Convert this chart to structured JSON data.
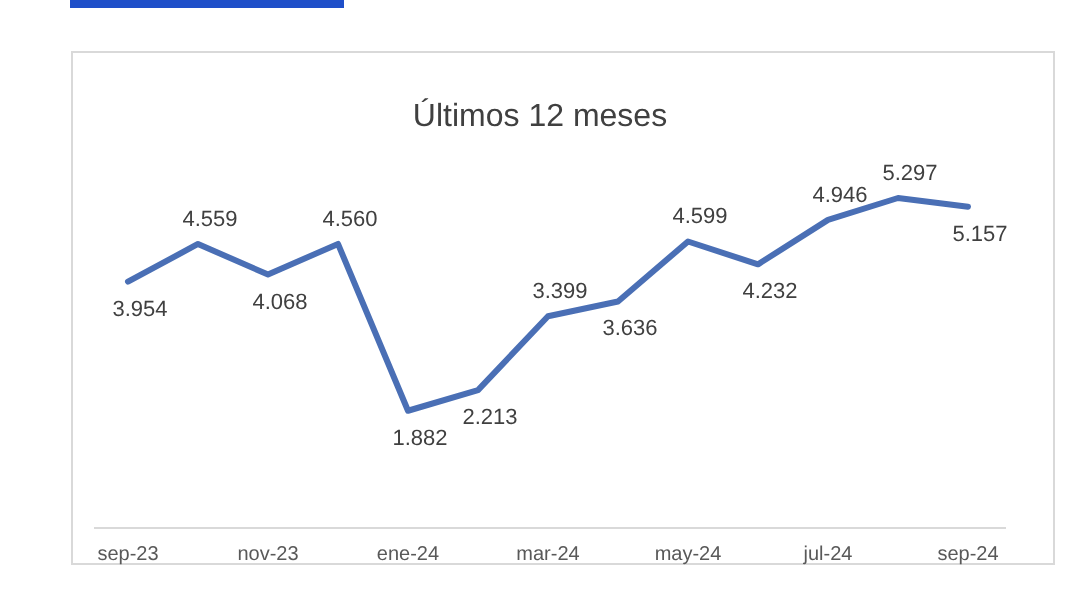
{
  "chart_data": {
    "type": "line",
    "title": "Últimos 12 meses",
    "categories": [
      "sep-23",
      null,
      "nov-23",
      null,
      "ene-24",
      null,
      "mar-24",
      null,
      "may-24",
      null,
      "jul-24",
      null,
      "sep-24"
    ],
    "series": [
      {
        "color": "#4a6fb5",
        "values": [
          3954,
          4559,
          4068,
          4560,
          1882,
          2213,
          3399,
          3636,
          4599,
          4232,
          4946,
          5297,
          5157
        ],
        "value_labels": [
          "3.954",
          "4.559",
          "4.068",
          "4.560",
          "1.882",
          "2.213",
          "3.399",
          "3.636",
          "4.599",
          "4.232",
          "4.946",
          "5.297",
          "5.157"
        ]
      }
    ],
    "tick_labels": "x",
    "marker": "none",
    "line_style": "solid"
  }
}
